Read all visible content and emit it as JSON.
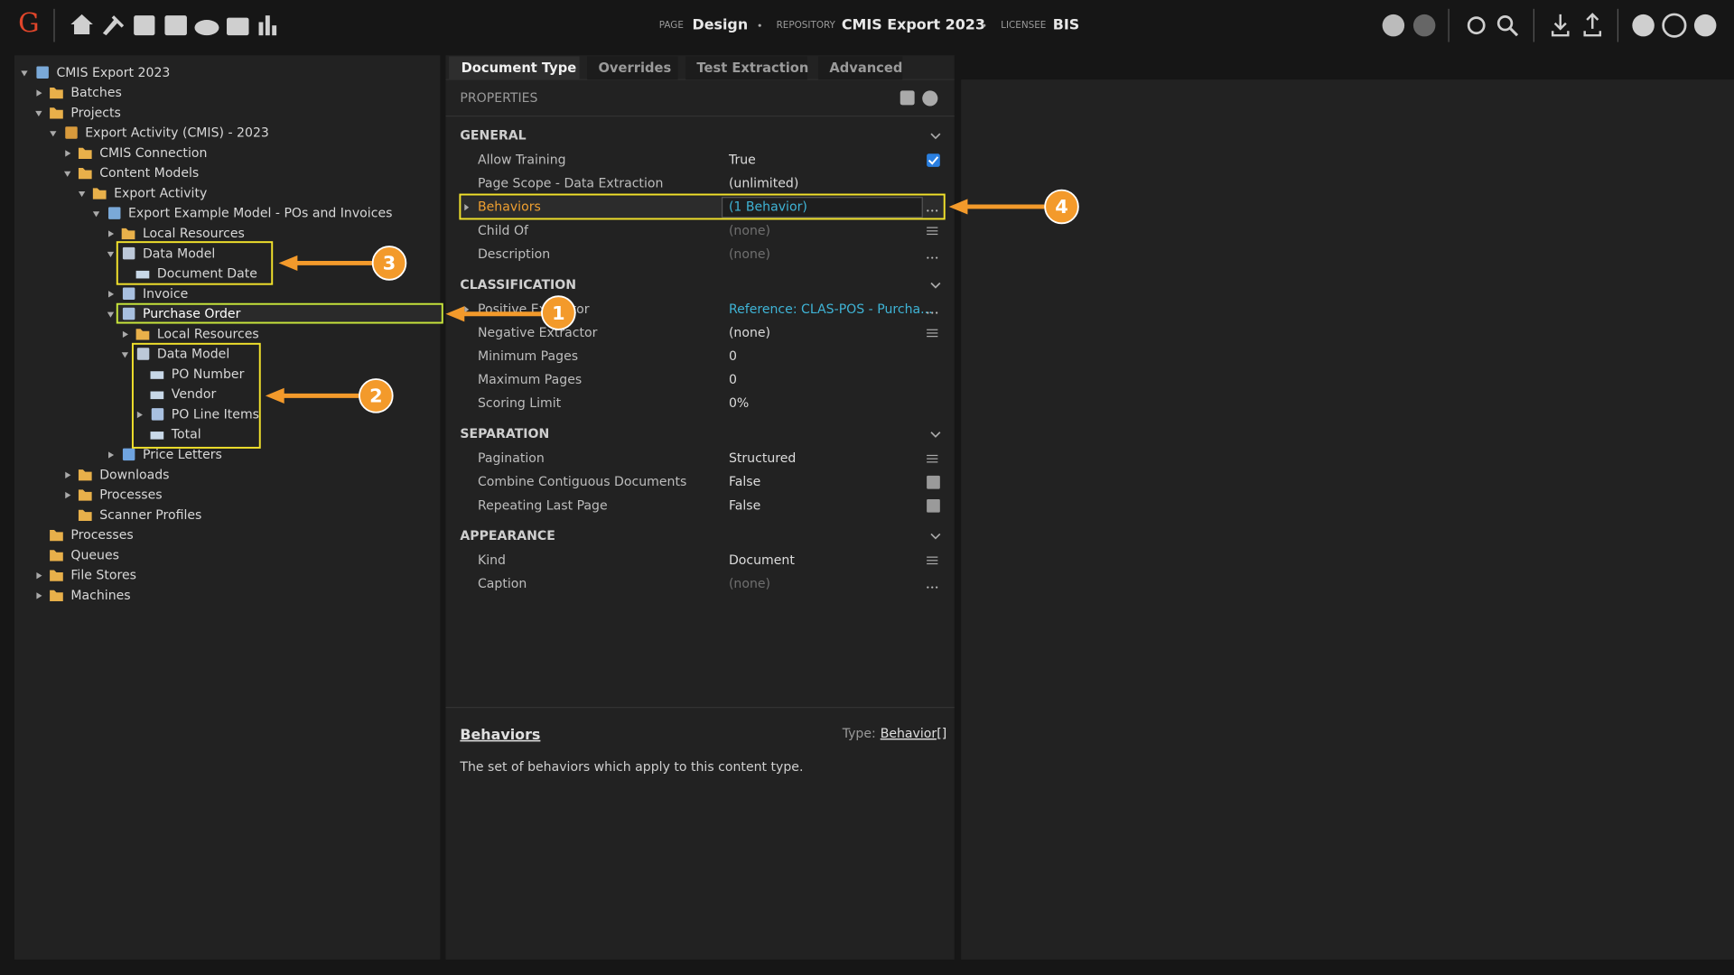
{
  "header": {
    "logo": "G",
    "page_label": "PAGE",
    "page": "Design",
    "repository_label": "REPOSITORY",
    "repository": "CMIS Export 2023",
    "licensee_label": "LICENSEE",
    "licensee": "BIS"
  },
  "tree": [
    {
      "label": "CMIS Export 2023",
      "level": 0,
      "state": "open",
      "icon": "repo"
    },
    {
      "label": "Batches",
      "level": 1,
      "state": "closed",
      "icon": "folder"
    },
    {
      "label": "Projects",
      "level": 1,
      "state": "open",
      "icon": "folder"
    },
    {
      "label": "Export Activity (CMIS) - 2023",
      "level": 2,
      "state": "open",
      "icon": "project"
    },
    {
      "label": "CMIS Connection",
      "level": 3,
      "state": "closed",
      "icon": "folder"
    },
    {
      "label": "Content Models",
      "level": 3,
      "state": "open",
      "icon": "folder"
    },
    {
      "label": "Export Activity",
      "level": 4,
      "state": "open",
      "icon": "folder"
    },
    {
      "label": "Export Example Model - POs and Invoices",
      "level": 5,
      "state": "open",
      "icon": "model"
    },
    {
      "label": "Local Resources",
      "level": 6,
      "state": "closed",
      "icon": "resources"
    },
    {
      "label": "Data Model",
      "level": 6,
      "state": "open",
      "icon": "datamodel"
    },
    {
      "label": "Document Date",
      "level": 7,
      "state": "none",
      "icon": "field"
    },
    {
      "label": "Invoice",
      "level": 6,
      "state": "closed",
      "icon": "doctype"
    },
    {
      "label": "Purchase Order",
      "level": 6,
      "state": "open",
      "icon": "doctype",
      "selected": true
    },
    {
      "label": "Local Resources",
      "level": 7,
      "state": "closed",
      "icon": "resources"
    },
    {
      "label": "Data Model",
      "level": 7,
      "state": "open",
      "icon": "datamodel"
    },
    {
      "label": "PO Number",
      "level": 8,
      "state": "none",
      "icon": "field"
    },
    {
      "label": "Vendor",
      "level": 8,
      "state": "none",
      "icon": "field"
    },
    {
      "label": "PO Line Items",
      "level": 8,
      "state": "closed",
      "icon": "table"
    },
    {
      "label": "Total",
      "level": 8,
      "state": "none",
      "icon": "field"
    },
    {
      "label": "Price Letters",
      "level": 6,
      "state": "closed",
      "icon": "hierarchy"
    },
    {
      "label": "Downloads",
      "level": 3,
      "state": "closed",
      "icon": "folder"
    },
    {
      "label": "Processes",
      "level": 3,
      "state": "closed",
      "icon": "folder"
    },
    {
      "label": "Scanner Profiles",
      "level": 3,
      "state": "none",
      "icon": "folder"
    },
    {
      "label": "Processes",
      "level": 1,
      "state": "none",
      "icon": "folder"
    },
    {
      "label": "Queues",
      "level": 1,
      "state": "none",
      "icon": "folder"
    },
    {
      "label": "File Stores",
      "level": 1,
      "state": "closed",
      "icon": "folder"
    },
    {
      "label": "Machines",
      "level": 1,
      "state": "closed",
      "icon": "folder"
    }
  ],
  "tabs": [
    {
      "label": "Document Type",
      "active": true
    },
    {
      "label": "Overrides"
    },
    {
      "label": "Test Extraction"
    },
    {
      "label": "Advanced"
    }
  ],
  "properties": {
    "title": "PROPERTIES",
    "groups": [
      {
        "name": "GENERAL",
        "rows": [
          {
            "label": "Allow Training",
            "value": "True",
            "editor": "check"
          },
          {
            "label": "Page Scope - Data Extraction",
            "value": "(unlimited)"
          },
          {
            "label": "Behaviors",
            "value": "(1 Behavior)",
            "style": "link",
            "editor": "ellipsis",
            "highlight": true
          },
          {
            "label": "Child Of",
            "value": "(none)",
            "style": "muted",
            "editor": "list"
          },
          {
            "label": "Description",
            "value": "(none)",
            "style": "muted",
            "editor": "ellipsis"
          }
        ]
      },
      {
        "name": "CLASSIFICATION",
        "rows": [
          {
            "label": "Positive Extractor",
            "value": "Reference: CLAS-POS - Purcha...",
            "style": "link",
            "editor": "ellipsis"
          },
          {
            "label": "Negative Extractor",
            "value": "(none)",
            "editor": "list"
          },
          {
            "label": "Minimum Pages",
            "value": "0"
          },
          {
            "label": "Maximum Pages",
            "value": "0"
          },
          {
            "label": "Scoring Limit",
            "value": "0%"
          }
        ]
      },
      {
        "name": "SEPARATION",
        "rows": [
          {
            "label": "Pagination",
            "value": "Structured",
            "editor": "list"
          },
          {
            "label": "Combine Contiguous Documents",
            "value": "False",
            "editor": "toggle"
          },
          {
            "label": "Repeating Last Page",
            "value": "False",
            "editor": "toggle"
          }
        ]
      },
      {
        "name": "APPEARANCE",
        "rows": [
          {
            "label": "Kind",
            "value": "Document",
            "editor": "list"
          },
          {
            "label": "Caption",
            "value": "(none)",
            "style": "muted",
            "editor": "ellipsis"
          }
        ]
      }
    ]
  },
  "help": {
    "title": "Behaviors",
    "type_label": "Type:",
    "type": "Behavior[]",
    "description": "The set of behaviors which apply to this content type."
  },
  "callouts": [
    "1",
    "2",
    "3",
    "4"
  ]
}
